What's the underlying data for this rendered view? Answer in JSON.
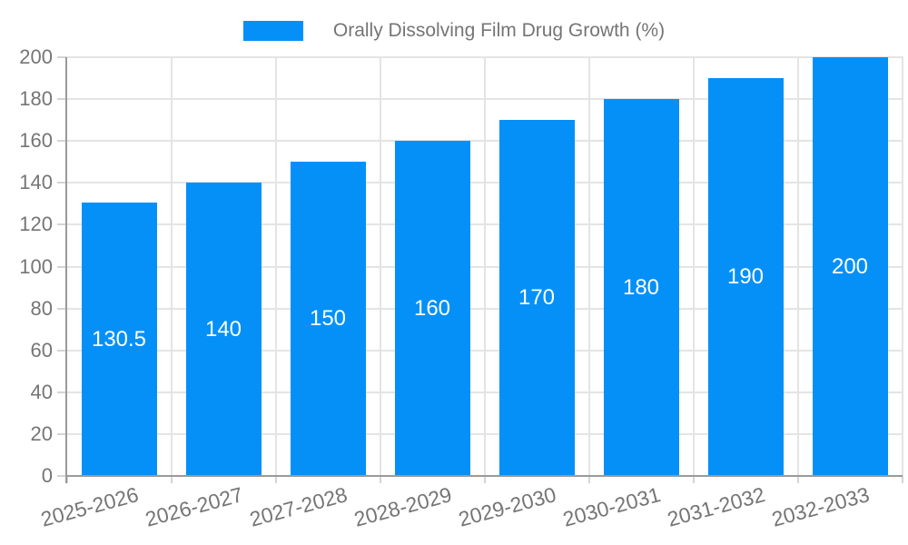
{
  "legend": {
    "position": "top",
    "label": "Orally Dissolving Film Drug Growth (%)"
  },
  "chart_data": {
    "type": "bar",
    "title": "Orally Dissolving Film Drug Growth (%)",
    "categories": [
      "2025-2026",
      "2026-2027",
      "2027-2028",
      "2028-2029",
      "2029-2030",
      "2030-2031",
      "2031-2032",
      "2032-2033"
    ],
    "values": [
      130.5,
      140,
      150,
      160,
      170,
      180,
      190,
      200
    ],
    "value_labels": [
      "130.5",
      "140",
      "150",
      "160",
      "170",
      "180",
      "190",
      "200"
    ],
    "xlabel": "",
    "ylabel": "",
    "ylim": [
      0,
      200
    ],
    "yticks": [
      0,
      20,
      40,
      60,
      80,
      100,
      120,
      140,
      160,
      180,
      200
    ],
    "grid": true,
    "legend_position": "top",
    "x_label_rotation_deg": -15,
    "bar_color": "#0590f8",
    "axis_text_color": "#757575",
    "grid_color": "#e4e4e4",
    "tick_color": "#d4d4d4",
    "axis_line_color": "#9a9a9a",
    "value_label_color": "#ffffff",
    "background_color": "#ffffff"
  }
}
